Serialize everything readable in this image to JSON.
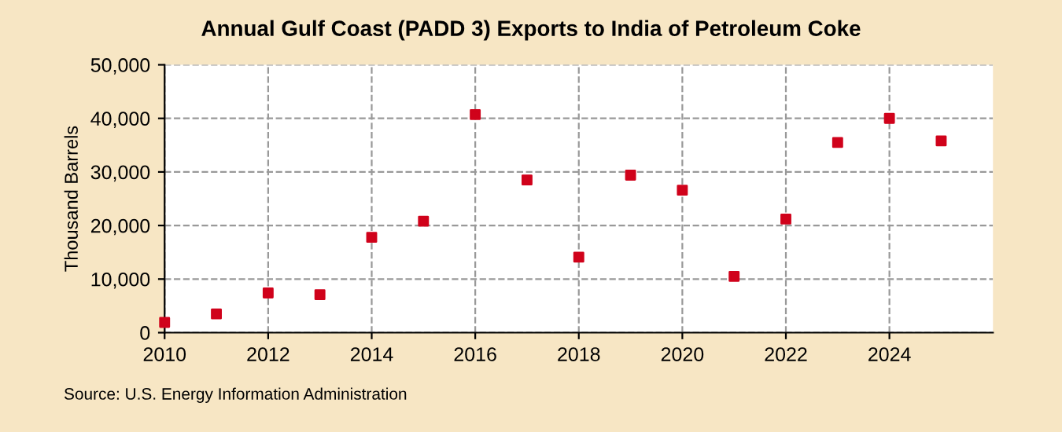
{
  "chart_data": {
    "type": "scatter",
    "title": "Annual Gulf Coast (PADD 3) Exports to India of Petroleum Coke",
    "ylabel": "Thousand Barrels",
    "x": [
      2010,
      2011,
      2012,
      2013,
      2014,
      2015,
      2016,
      2017,
      2018,
      2019,
      2020,
      2021,
      2022,
      2023,
      2024,
      2025
    ],
    "series": [
      {
        "color": "#d0021b",
        "values": [
          1900,
          3500,
          7400,
          7100,
          17800,
          20800,
          40700,
          28500,
          14100,
          29400,
          26600,
          10500,
          21200,
          35500,
          40000,
          35800
        ]
      }
    ],
    "xlim": [
      2010,
      2026
    ],
    "xticks": [
      2010,
      2012,
      2014,
      2016,
      2018,
      2020,
      2022,
      2024
    ],
    "ylim": [
      0,
      50000
    ],
    "yticks": [
      {
        "value": 0,
        "label": "0"
      },
      {
        "value": 10000,
        "label": "10,000"
      },
      {
        "value": 20000,
        "label": "20,000"
      },
      {
        "value": 30000,
        "label": "30,000"
      },
      {
        "value": 40000,
        "label": "40,000"
      },
      {
        "value": 50000,
        "label": "50,000"
      }
    ],
    "grid": true,
    "marker": "square",
    "annotations": [
      "Source: U.S. Energy Information Administration"
    ]
  }
}
